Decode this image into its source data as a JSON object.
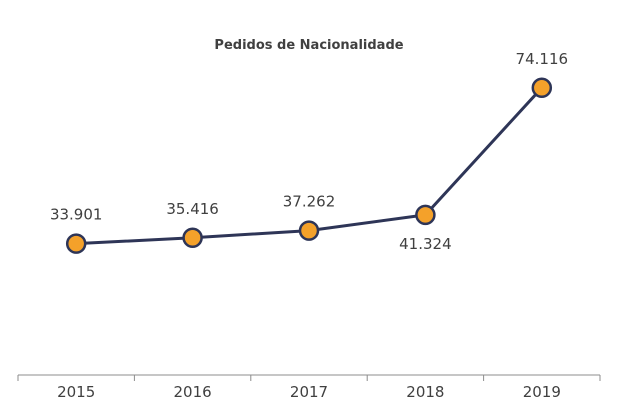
{
  "chart_data": {
    "type": "line",
    "title": "Pedidos de Nacionalidade",
    "categories": [
      "2015",
      "2016",
      "2017",
      "2018",
      "2019"
    ],
    "series": [
      {
        "values": [
          33901,
          35416,
          37262,
          41324,
          74116
        ],
        "labels": [
          "33.901",
          "35.416",
          "37.262",
          "41.324",
          "74.116"
        ]
      }
    ],
    "xlabel": "",
    "ylabel": "",
    "ylim": [
      0,
      80000
    ],
    "grid": false,
    "legend": "none",
    "colors": {
      "line": "#2e3557",
      "marker_fill": "#f4a12a",
      "marker_stroke": "#2e3557",
      "axis": "#8c8c8c",
      "text": "#404040"
    }
  }
}
